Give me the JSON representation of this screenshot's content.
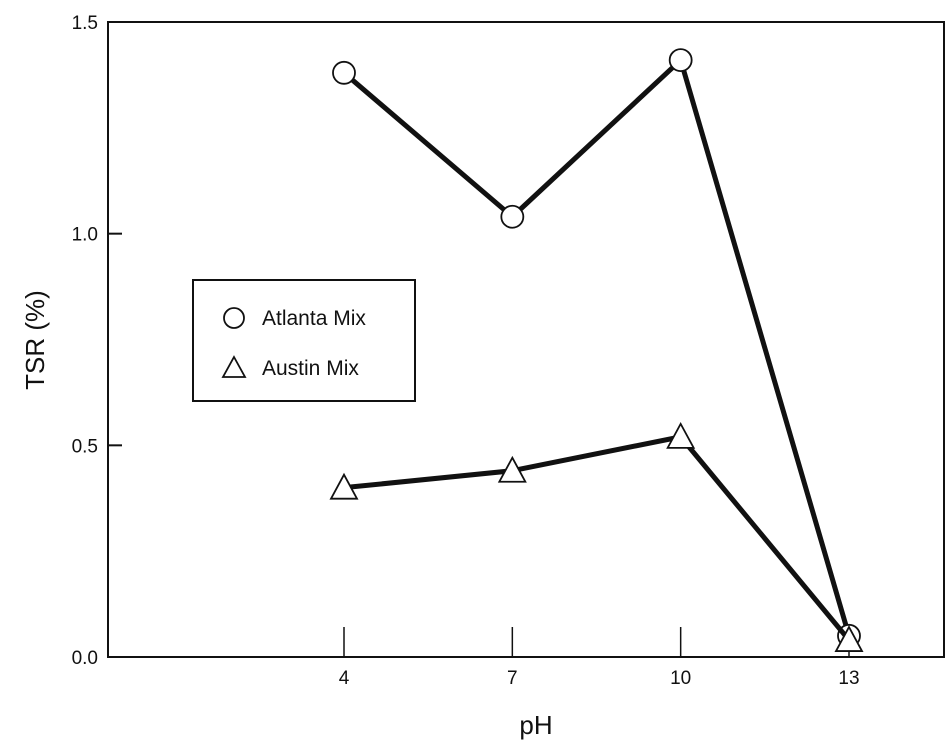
{
  "chart_data": {
    "type": "line",
    "title": "",
    "xlabel": "pH",
    "ylabel": "TSR (%)",
    "x_ticks": [
      "4",
      "7",
      "10",
      "13"
    ],
    "y_ticks": [
      "0.0",
      "0.5",
      "1.0",
      "1.5"
    ],
    "xlim": [
      0,
      15
    ],
    "ylim": [
      0,
      1.5
    ],
    "grid": false,
    "legend_position": "middle-left",
    "series": [
      {
        "name": "Atlanta Mix",
        "marker": "circle",
        "color": "#111111",
        "x": [
          4,
          7,
          10,
          13
        ],
        "y": [
          1.38,
          1.04,
          1.41,
          0.05
        ]
      },
      {
        "name": "Austin Mix",
        "marker": "triangle",
        "color": "#111111",
        "x": [
          4,
          7,
          10,
          13
        ],
        "y": [
          0.4,
          0.44,
          0.52,
          0.04
        ]
      }
    ]
  }
}
